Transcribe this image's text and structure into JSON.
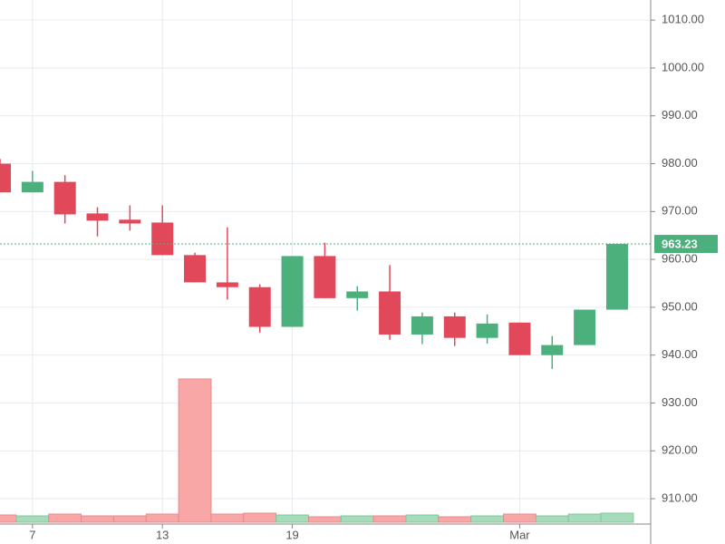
{
  "chart_data": {
    "type": "candlestick",
    "categories": [
      null,
      "7",
      null,
      null,
      null,
      "13",
      null,
      null,
      null,
      "19",
      null,
      null,
      null,
      null,
      null,
      null,
      "Mar",
      null,
      null,
      null
    ],
    "open": [
      980,
      974,
      976.2,
      969.6,
      968.3,
      967.7,
      960.9,
      955.2,
      954.2,
      945.9,
      960.7,
      951.9,
      953.3,
      944.3,
      948.1,
      943.6,
      946.8,
      940,
      942.1,
      949.5
    ],
    "high": [
      981,
      978.5,
      977.6,
      970.9,
      971.3,
      971.3,
      961.4,
      966.7,
      954.8,
      960.7,
      963.5,
      954.4,
      958.8,
      948.9,
      948.9,
      948.5,
      946.8,
      944,
      949.5,
      963.23
    ],
    "low": [
      974,
      974,
      967.5,
      964.8,
      966,
      960.9,
      955.2,
      951.6,
      944.7,
      945.9,
      951.9,
      949.3,
      943.2,
      942.3,
      941.9,
      942.4,
      940,
      937.1,
      942.1,
      949.5
    ],
    "close": [
      974,
      976.2,
      969.4,
      968.1,
      967.5,
      960.9,
      955.2,
      954.2,
      945.9,
      960.7,
      951.9,
      953.3,
      944.3,
      948.1,
      943.6,
      946.6,
      940,
      942.1,
      949.5,
      963.23
    ],
    "volume": [
      8,
      7,
      9,
      7,
      7,
      9,
      158,
      9,
      10,
      8,
      6,
      7,
      7,
      8,
      6,
      7,
      9,
      7,
      9,
      10
    ],
    "up_color": "#4cb07d",
    "down_color": "#e1495a",
    "volume_up_color": "#a6dcb9",
    "volume_down_color": "#f9a6a6",
    "last_price": 963.23,
    "ylim": [
      904.7,
      1014.2
    ],
    "yticks": [
      {
        "value": 910,
        "label": "910.00"
      },
      {
        "value": 920,
        "label": "920.00"
      },
      {
        "value": 930,
        "label": "930.00"
      },
      {
        "value": 940,
        "label": "940.00"
      },
      {
        "value": 950,
        "label": "950.00"
      },
      {
        "value": 960,
        "label": "960.00"
      },
      {
        "value": 970,
        "label": "970.00"
      },
      {
        "value": 980,
        "label": "980.00"
      },
      {
        "value": 990,
        "label": "990.00"
      },
      {
        "value": 1000,
        "label": "1000.00"
      },
      {
        "value": 1010,
        "label": "1010.00"
      }
    ],
    "grid": true
  }
}
